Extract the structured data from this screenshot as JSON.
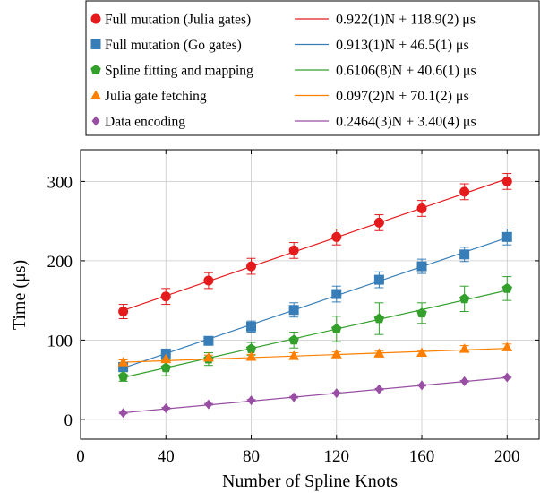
{
  "chart_data": {
    "type": "scatter",
    "xlabel": "Number of Spline Knots",
    "ylabel": "Time (μs)",
    "xlim": [
      0,
      215
    ],
    "ylim": [
      -25,
      340
    ],
    "xticks": [
      0,
      40,
      80,
      120,
      160,
      200
    ],
    "yticks": [
      0,
      100,
      200,
      300
    ],
    "grid": true,
    "legend_position": "top",
    "x": [
      20,
      40,
      60,
      80,
      100,
      120,
      140,
      160,
      180,
      200
    ],
    "series": [
      {
        "name": "Full mutation (Julia gates)",
        "color": "#e41a1c",
        "marker": "circle",
        "values": [
          136,
          155,
          175,
          193,
          213,
          230,
          248,
          266,
          287,
          300
        ],
        "errors": [
          9,
          10,
          10,
          10,
          10,
          10,
          10,
          10,
          10,
          10
        ],
        "fit": {
          "label": "0.922(1)N + 118.9(2) μs",
          "slope": 0.922,
          "intercept": 118.9
        }
      },
      {
        "name": "Full mutation (Go gates)",
        "color": "#377eb8",
        "marker": "square",
        "values": [
          66,
          83,
          99,
          117,
          138,
          158,
          176,
          193,
          208,
          230
        ],
        "errors": [
          5,
          5,
          5,
          7,
          9,
          10,
          10,
          9,
          9,
          10
        ],
        "fit": {
          "label": "0.913(1)N + 46.5(1) μs",
          "slope": 0.913,
          "intercept": 46.5
        }
      },
      {
        "name": "Spline fitting and mapping",
        "color": "#33a02c",
        "marker": "pentagon",
        "values": [
          54,
          65,
          76,
          89,
          100,
          114,
          127,
          134,
          152,
          165
        ],
        "errors": [
          6,
          10,
          8,
          8,
          10,
          16,
          20,
          13,
          16,
          15
        ],
        "fit": {
          "label": "0.6106(8)N + 40.6(1) μs",
          "slope": 0.6106,
          "intercept": 40.6
        }
      },
      {
        "name": "Julia gate fetching",
        "color": "#ff7f00",
        "marker": "triangle",
        "values": [
          72,
          76,
          78,
          79,
          80,
          82,
          83,
          84,
          89,
          91
        ],
        "errors": [
          3,
          3,
          3,
          3,
          4,
          3,
          3,
          3,
          4,
          4
        ],
        "fit": {
          "label": "0.097(2)N + 70.1(2) μs",
          "slope": 0.097,
          "intercept": 70.1
        }
      },
      {
        "name": "Data encoding",
        "color": "#984ea3",
        "marker": "diamond",
        "values": [
          8,
          14,
          19,
          24,
          28,
          33,
          38,
          43,
          48,
          53
        ],
        "errors": [
          1,
          1,
          1,
          1,
          1,
          1,
          1,
          1,
          1,
          1
        ],
        "fit": {
          "label": "0.2464(3)N + 3.40(4) μs",
          "slope": 0.2464,
          "intercept": 3.4
        }
      }
    ]
  }
}
